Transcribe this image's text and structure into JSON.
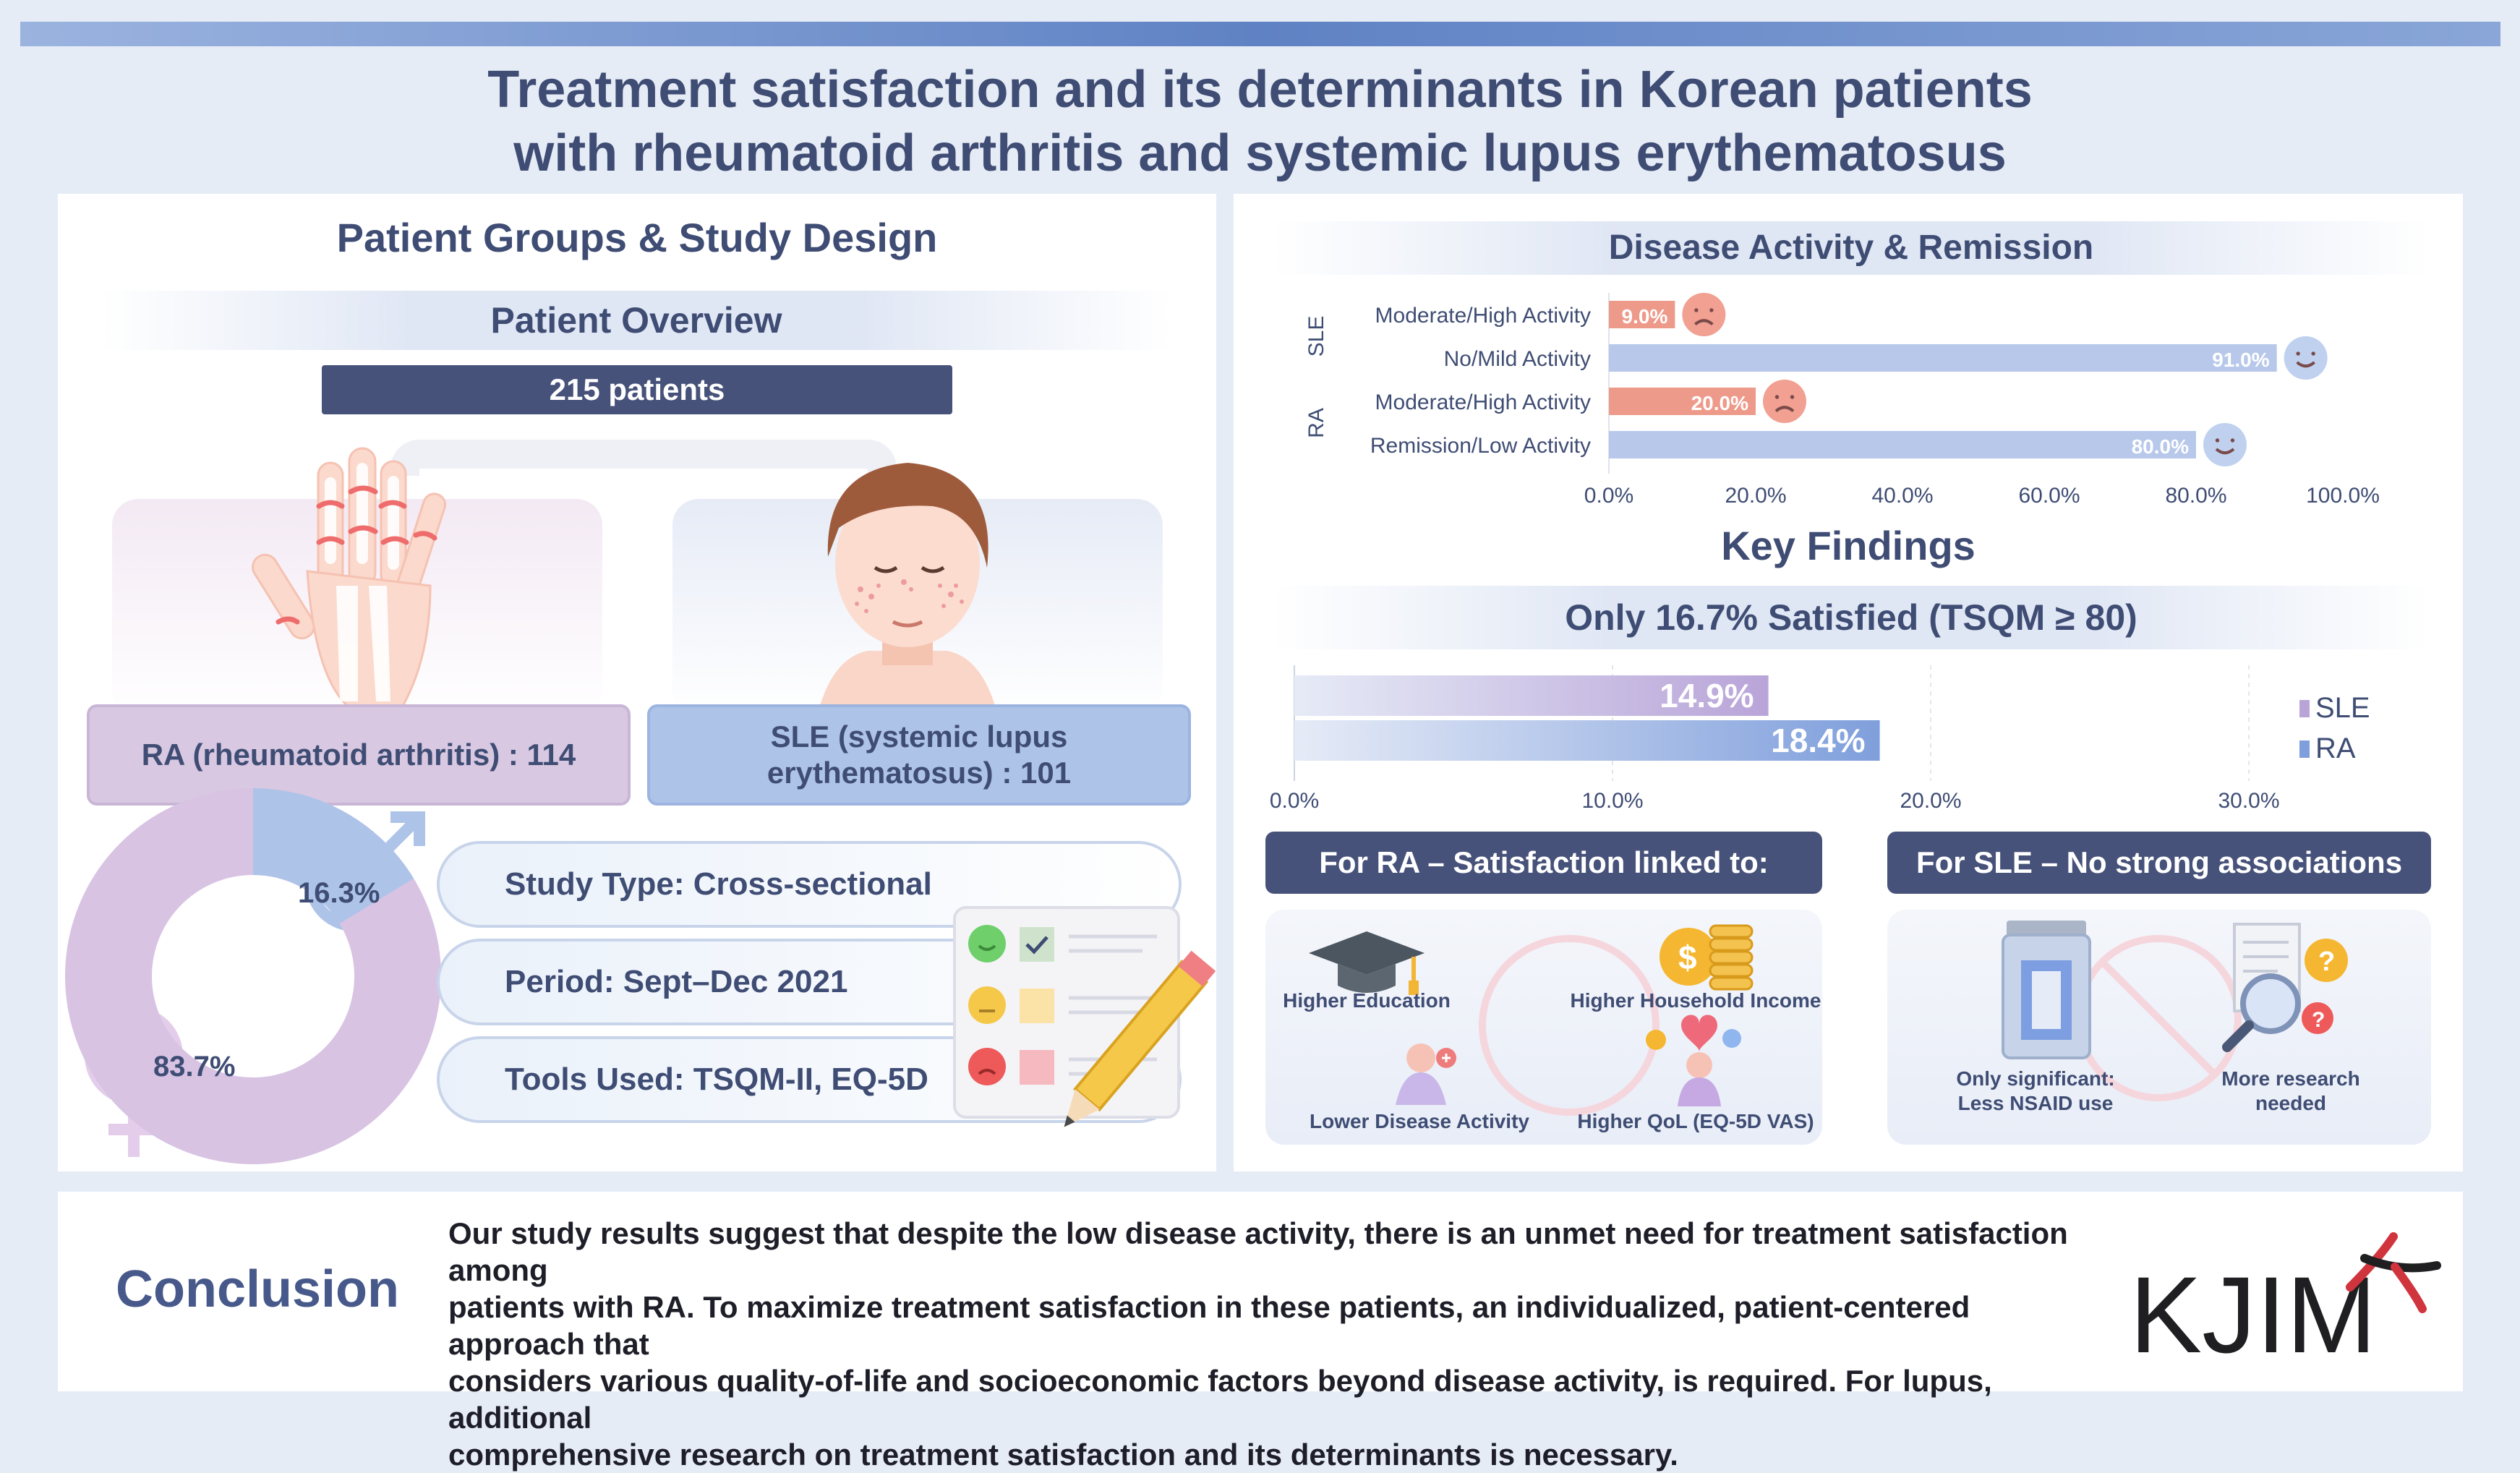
{
  "title": {
    "line1": "Treatment satisfaction and its determinants in Korean patients",
    "line2": "with rheumatoid arthritis and systemic lupus erythematosus"
  },
  "left": {
    "heading": "Patient Groups & Study Design",
    "overview_label": "Patient Overview",
    "total": "215 patients",
    "ra_label": "RA (rheumatoid arthritis) : 114",
    "sle_label_line1": "SLE (systemic lupus",
    "sle_label_line2": "erythematosus) : 101",
    "sex": {
      "male_pct": "16.3%",
      "female_pct": "83.7%",
      "male_value": 16.3,
      "female_value": 83.7
    },
    "design": [
      {
        "label": "Study Type: Cross-sectional"
      },
      {
        "label": "Period: Sept–Dec 2021"
      },
      {
        "label": "Tools Used: TSQM-II, EQ-5D"
      }
    ]
  },
  "right": {
    "activity_heading": "Disease Activity & Remission",
    "key_findings": "Key Findings",
    "satisfied_band": "Only 16.7% Satisfied (TSQM ≥ 80)",
    "ra_box_title": "For RA – Satisfaction linked to:",
    "sle_box_title": "For SLE – No strong associations",
    "ra_items": {
      "education": "Higher Education",
      "income": "Higher Household Income",
      "activity": "Lower Disease Activity",
      "qol": "Higher QoL (EQ-5D VAS)"
    },
    "sle_items": {
      "nsaid_line1": "Only significant:",
      "nsaid_line2": "Less NSAID use",
      "research_line1": "More research",
      "research_line2": "needed"
    }
  },
  "chart_data": [
    {
      "type": "bar",
      "orientation": "horizontal",
      "groups": [
        "SLE",
        "RA"
      ],
      "categories": [
        "Moderate/High Activity",
        "No/Mild Activity",
        "Moderate/High Activity",
        "Remission/Low Activity"
      ],
      "category_groups": [
        "SLE",
        "SLE",
        "RA",
        "RA"
      ],
      "values": [
        9.0,
        91.0,
        20.0,
        80.0
      ],
      "value_labels": [
        "9.0%",
        "91.0%",
        "20.0%",
        "80.0%"
      ],
      "xlim": [
        0,
        100
      ],
      "xticks": [
        "0.0%",
        "20.0%",
        "40.0%",
        "60.0%",
        "80.0%",
        "100.0%"
      ],
      "colors": {
        "active": "#ee9a8a",
        "remission": "#b7c8ea"
      }
    },
    {
      "type": "bar",
      "orientation": "horizontal",
      "series": [
        {
          "name": "SLE",
          "values": [
            14.9
          ],
          "label": "14.9%",
          "color": "#b9a4d8"
        },
        {
          "name": "RA",
          "values": [
            18.4
          ],
          "label": "18.4%",
          "color": "#7f9fdc"
        }
      ],
      "xlim": [
        0,
        30
      ],
      "xticks": [
        "0.0%",
        "10.0%",
        "20.0%",
        "30.0%"
      ],
      "legend": "right"
    }
  ],
  "conclusion": {
    "title": "Conclusion",
    "line1": "Our study results suggest that despite the low disease activity, there is an unmet need for treatment satisfaction among",
    "line2": "patients with RA. To maximize treatment satisfaction in these patients, an individualized, patient-centered approach that",
    "line3": "considers various quality-of-life and socioeconomic factors beyond disease activity, is required. For lupus, additional",
    "line4": "comprehensive research on treatment satisfaction and its determinants is necessary."
  },
  "logo_text": "KJIM"
}
